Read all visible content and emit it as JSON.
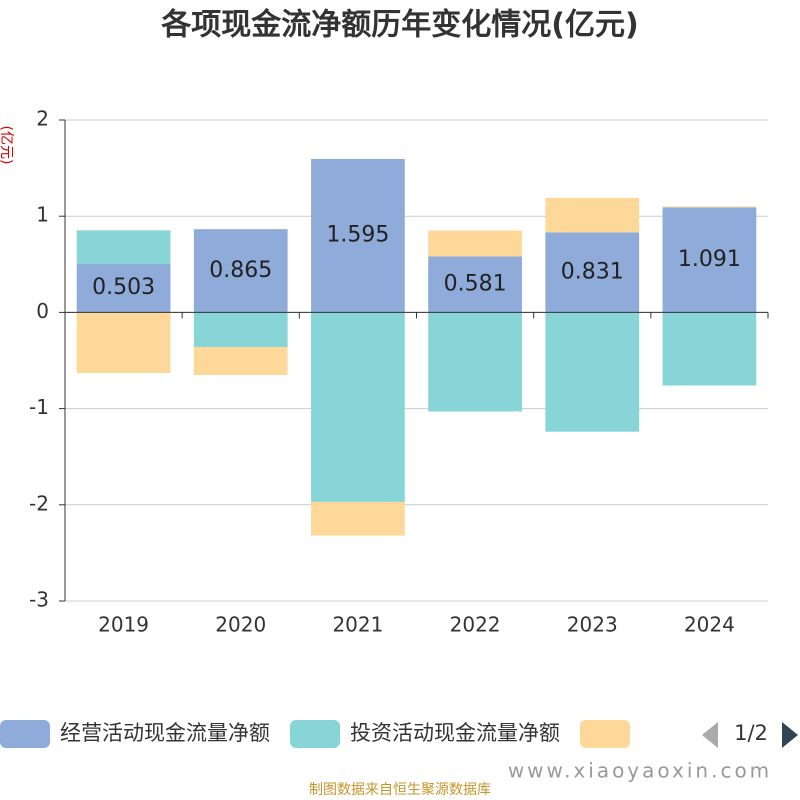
{
  "chart_data": {
    "type": "bar",
    "stacked": true,
    "title": "各项现金流净额历年变化情况(亿元)",
    "y_label": "(亿元)",
    "categories": [
      "2019",
      "2020",
      "2021",
      "2022",
      "2023",
      "2024"
    ],
    "series": [
      {
        "name": "经营活动现金流量净额",
        "color": "#8eabd9",
        "values": [
          0.503,
          0.865,
          1.595,
          0.581,
          0.831,
          1.091
        ],
        "show_labels": true
      },
      {
        "name": "投资活动现金流量净额",
        "color": "#88d5d8",
        "values": [
          0.35,
          -0.36,
          -1.97,
          -1.03,
          -1.24,
          -0.76
        ]
      },
      {
        "color": "#fdd898",
        "values": [
          -0.63,
          -0.29,
          -0.35,
          0.27,
          0.36,
          0.01
        ]
      }
    ],
    "ylim": [
      -3,
      2
    ],
    "yticks": [
      -3,
      -2,
      -1,
      0,
      1,
      2
    ],
    "grid": true,
    "legend_page": "1/2",
    "source": "制图数据来自恒生聚源数据库",
    "watermark": "www.xiaoyaoxin.com"
  }
}
